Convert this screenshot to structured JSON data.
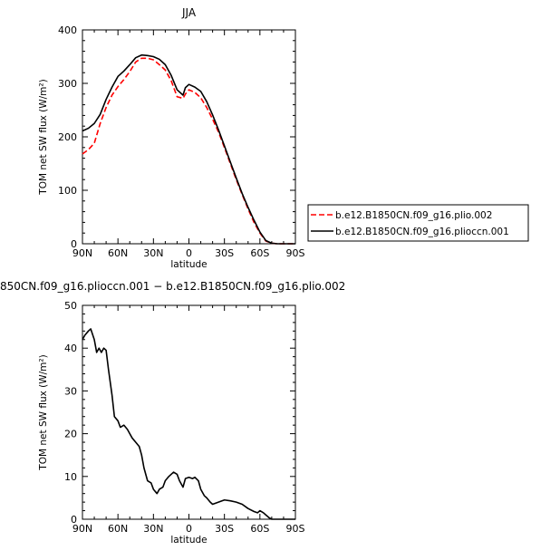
{
  "chart_data": [
    {
      "type": "line",
      "title": "JJA",
      "xlabel": "latitude",
      "ylabel": "TOM net SW flux (W/m²)",
      "ylim": [
        0,
        400
      ],
      "yticks": [
        "0",
        "100",
        "200",
        "300",
        "400"
      ],
      "xlim": [
        90,
        -90
      ],
      "xticks": [
        {
          "value": 90,
          "label": "90N"
        },
        {
          "value": 60,
          "label": "60N"
        },
        {
          "value": 30,
          "label": "30N"
        },
        {
          "value": 0,
          "label": "0"
        },
        {
          "value": -30,
          "label": "30S"
        },
        {
          "value": -60,
          "label": "60S"
        },
        {
          "value": -90,
          "label": "90S"
        }
      ],
      "legend_placement": "right",
      "series": [
        {
          "name": "b.e12.B1850CN.f09_g16.plio.002",
          "color": "#ff0000",
          "dash": "dashed",
          "x": [
            90,
            85,
            80,
            75,
            70,
            65,
            60,
            55,
            50,
            45,
            40,
            35,
            30,
            25,
            20,
            15,
            10,
            5,
            3,
            0,
            -5,
            -10,
            -15,
            -20,
            -25,
            -30,
            -35,
            -40,
            -45,
            -50,
            -55,
            -60,
            -65,
            -70,
            -75,
            -80,
            -85,
            -90
          ],
          "y": [
            168,
            176,
            188,
            225,
            255,
            278,
            294,
            307,
            322,
            340,
            347,
            347,
            344,
            335,
            325,
            305,
            275,
            272,
            280,
            288,
            283,
            273,
            255,
            233,
            209,
            180,
            150,
            120,
            92,
            65,
            40,
            20,
            5,
            1,
            0,
            0,
            0,
            0
          ]
        },
        {
          "name": "b.e12.B1850CN.f09_g16.plioccn.001",
          "color": "#000000",
          "dash": "solid",
          "x": [
            90,
            85,
            80,
            75,
            70,
            65,
            60,
            55,
            50,
            45,
            40,
            35,
            30,
            25,
            20,
            15,
            10,
            5,
            3,
            0,
            -5,
            -10,
            -15,
            -20,
            -25,
            -30,
            -35,
            -40,
            -45,
            -50,
            -55,
            -60,
            -65,
            -70,
            -75,
            -80,
            -85,
            -90
          ],
          "y": [
            211,
            216,
            225,
            242,
            270,
            293,
            313,
            323,
            335,
            348,
            353,
            352,
            350,
            345,
            335,
            315,
            288,
            278,
            292,
            298,
            293,
            285,
            266,
            241,
            213,
            183,
            153,
            123,
            94,
            68,
            44,
            22,
            6,
            1,
            0,
            0,
            0,
            0
          ]
        }
      ]
    },
    {
      "type": "line",
      "title": "850CN.f09_g16.plioccn.001 − b.e12.B1850CN.f09_g16.plio.002",
      "xlabel": "latitude",
      "ylabel": "TOM net SW flux (W/m²)",
      "ylim": [
        0,
        50
      ],
      "yticks": [
        "0",
        "10",
        "20",
        "30",
        "40",
        "50"
      ],
      "xlim": [
        90,
        -90
      ],
      "xticks": [
        {
          "value": 90,
          "label": "90N"
        },
        {
          "value": 60,
          "label": "60N"
        },
        {
          "value": 30,
          "label": "30N"
        },
        {
          "value": 0,
          "label": "0"
        },
        {
          "value": -30,
          "label": "30S"
        },
        {
          "value": -60,
          "label": "60S"
        },
        {
          "value": -90,
          "label": "90S"
        }
      ],
      "series": [
        {
          "name": "",
          "color": "#000000",
          "dash": "solid",
          "x": [
            90,
            88,
            85,
            83,
            80,
            78,
            76,
            74,
            72,
            70,
            68,
            65,
            63,
            60,
            58,
            55,
            52,
            50,
            48,
            45,
            42,
            40,
            38,
            35,
            32,
            30,
            27,
            25,
            22,
            20,
            17,
            15,
            13,
            10,
            8,
            5,
            3,
            0,
            -3,
            -5,
            -8,
            -10,
            -13,
            -15,
            -18,
            -20,
            -25,
            -30,
            -35,
            -40,
            -45,
            -50,
            -55,
            -58,
            -60,
            -63,
            -65,
            -68,
            -70,
            -75,
            -80,
            -85,
            -90
          ],
          "y": [
            42,
            43,
            44,
            44.5,
            42,
            39,
            40,
            39,
            40,
            39.5,
            35,
            29,
            24,
            23,
            21.5,
            22,
            21,
            20,
            19,
            18,
            17,
            15,
            12,
            9,
            8.5,
            7,
            6,
            7,
            7.5,
            9,
            10,
            10.5,
            11,
            10.5,
            9,
            7.5,
            9.5,
            9.8,
            9.5,
            9.8,
            9,
            7,
            5.5,
            5,
            4,
            3.5,
            4,
            4.5,
            4.3,
            4,
            3.5,
            2.5,
            1.8,
            1.5,
            2,
            1.5,
            1,
            0.3,
            0,
            0,
            0,
            0,
            0
          ]
        }
      ]
    }
  ]
}
